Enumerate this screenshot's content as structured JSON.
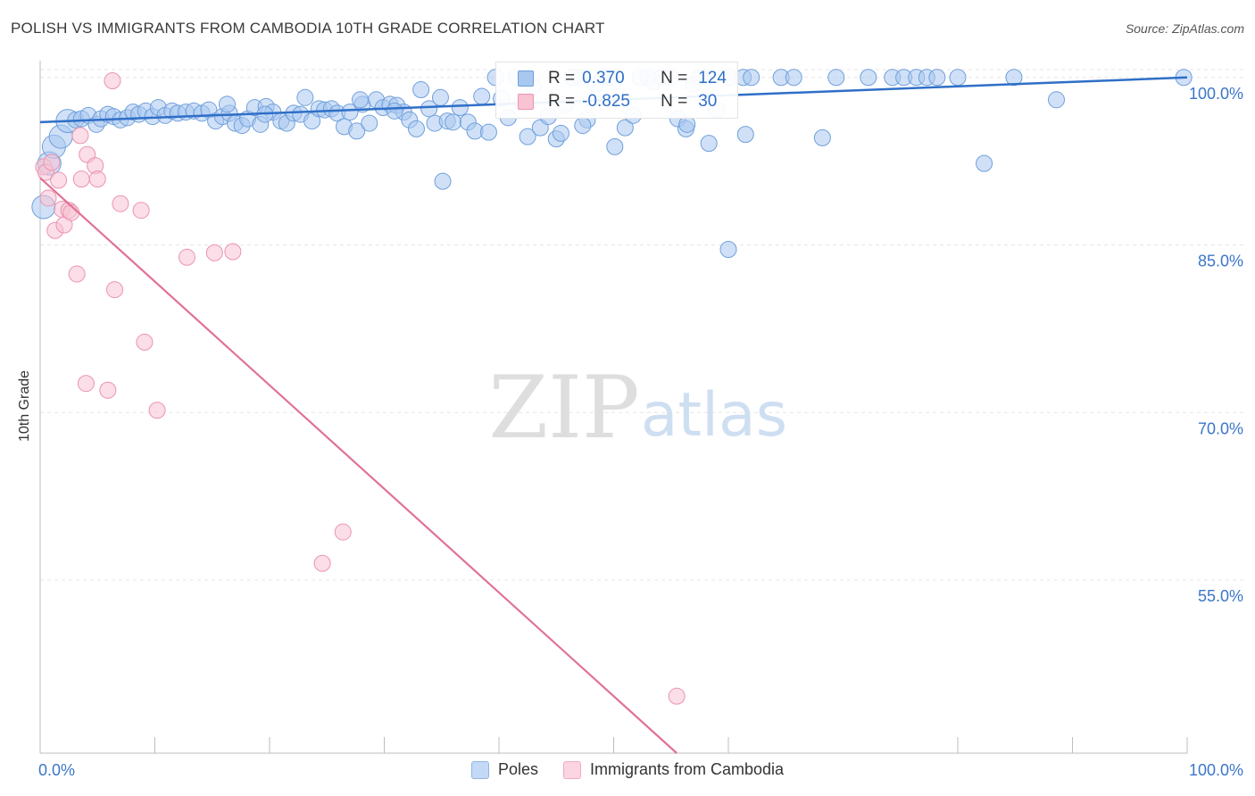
{
  "header": {
    "title": "POLISH VS IMMIGRANTS FROM CAMBODIA 10TH GRADE CORRELATION CHART",
    "source": "Source: ZipAtlas.com"
  },
  "watermark": {
    "zip": "ZIP",
    "atlas": "atlas"
  },
  "stats_legend": {
    "rows": [
      {
        "r_label": "R =",
        "r_value": "0.370",
        "n_label": "N =",
        "n_value": "124",
        "color": "#7aa9e6"
      },
      {
        "r_label": "R =",
        "r_value": "-0.825",
        "n_label": "N =",
        "n_value": "30",
        "color": "#f2a3bd"
      }
    ]
  },
  "colors": {
    "poles_fill": "#a9c8f0",
    "poles_stroke": "#6f9fdc",
    "poles_line": "#2f6fc7",
    "cambodia_fill": "#f8c3d3",
    "cambodia_stroke": "#eb93b0",
    "cambodia_line": "#e07298",
    "tick_label": "#3b76c9",
    "grid": "#e6e6e6"
  },
  "chart_data": {
    "type": "scatter",
    "title": "POLISH VS IMMIGRANTS FROM CAMBODIA 10TH GRADE CORRELATION CHART",
    "xlabel": "",
    "ylabel": "10th Grade",
    "xlim": [
      0,
      100
    ],
    "ylim": [
      39.5,
      101.5
    ],
    "x_tick_labels": [
      "0.0%",
      "100.0%"
    ],
    "y_ticks": [
      55,
      70,
      85,
      100
    ],
    "y_tick_labels": [
      "55.0%",
      "70.0%",
      "85.0%",
      "100.0%"
    ],
    "grid": true,
    "legend": "bottom",
    "series": [
      {
        "name": "Poles",
        "r": 0.37,
        "n": 124,
        "trend": [
          [
            0,
            96.0
          ],
          [
            100,
            100.0
          ]
        ],
        "points": [
          [
            0.3,
            88.4
          ],
          [
            0.8,
            92.3
          ],
          [
            1.2,
            93.8
          ],
          [
            1.8,
            94.7
          ],
          [
            2.4,
            96.1
          ],
          [
            3.1,
            96.2
          ],
          [
            3.6,
            96.3
          ],
          [
            4.2,
            96.6
          ],
          [
            4.9,
            95.8
          ],
          [
            5.3,
            96.3
          ],
          [
            5.9,
            96.7
          ],
          [
            6.4,
            96.5
          ],
          [
            7.0,
            96.2
          ],
          [
            7.6,
            96.4
          ],
          [
            8.1,
            96.9
          ],
          [
            8.6,
            96.7
          ],
          [
            9.2,
            97.0
          ],
          [
            9.8,
            96.5
          ],
          [
            10.3,
            97.3
          ],
          [
            10.9,
            96.6
          ],
          [
            11.5,
            97.0
          ],
          [
            12.0,
            96.8
          ],
          [
            12.7,
            96.9
          ],
          [
            13.4,
            97.0
          ],
          [
            14.1,
            96.8
          ],
          [
            14.7,
            97.1
          ],
          [
            15.3,
            96.1
          ],
          [
            15.9,
            96.5
          ],
          [
            16.5,
            96.8
          ],
          [
            17.0,
            95.9
          ],
          [
            17.6,
            95.7
          ],
          [
            18.1,
            96.3
          ],
          [
            18.7,
            97.3
          ],
          [
            19.2,
            95.8
          ],
          [
            19.7,
            97.4
          ],
          [
            20.3,
            96.9
          ],
          [
            21.0,
            96.1
          ],
          [
            21.5,
            95.9
          ],
          [
            22.1,
            96.8
          ],
          [
            22.7,
            96.7
          ],
          [
            23.1,
            98.2
          ],
          [
            23.7,
            96.1
          ],
          [
            24.3,
            97.2
          ],
          [
            24.8,
            97.1
          ],
          [
            25.4,
            97.2
          ],
          [
            25.9,
            96.8
          ],
          [
            26.5,
            95.6
          ],
          [
            27.0,
            96.9
          ],
          [
            27.6,
            95.2
          ],
          [
            28.1,
            97.6
          ],
          [
            28.7,
            95.9
          ],
          [
            29.3,
            98.0
          ],
          [
            29.9,
            97.3
          ],
          [
            30.5,
            97.6
          ],
          [
            31.1,
            97.5
          ],
          [
            31.7,
            96.9
          ],
          [
            32.2,
            96.2
          ],
          [
            32.8,
            95.4
          ],
          [
            33.2,
            98.9
          ],
          [
            33.9,
            97.2
          ],
          [
            34.4,
            95.9
          ],
          [
            34.9,
            98.2
          ],
          [
            35.5,
            96.1
          ],
          [
            36.0,
            96.0
          ],
          [
            36.6,
            97.3
          ],
          [
            37.3,
            96.0
          ],
          [
            37.9,
            95.2
          ],
          [
            38.5,
            98.3
          ],
          [
            39.1,
            95.1
          ],
          [
            39.7,
            100.0
          ],
          [
            40.2,
            98.1
          ],
          [
            40.8,
            96.4
          ],
          [
            41.5,
            100.0
          ],
          [
            42.0,
            97.7
          ],
          [
            42.5,
            94.7
          ],
          [
            43.0,
            99.2
          ],
          [
            43.6,
            95.5
          ],
          [
            44.3,
            96.5
          ],
          [
            45.0,
            94.5
          ],
          [
            45.8,
            97.6
          ],
          [
            46.4,
            100.0
          ],
          [
            47.0,
            100.0
          ],
          [
            47.7,
            96.2
          ],
          [
            48.4,
            99.4
          ],
          [
            49.1,
            100.0
          ],
          [
            49.6,
            100.0
          ],
          [
            50.2,
            100.0
          ],
          [
            51.0,
            95.5
          ],
          [
            51.7,
            96.6
          ],
          [
            52.3,
            100.0
          ],
          [
            53.0,
            100.0
          ],
          [
            53.5,
            99.6
          ],
          [
            54.2,
            100.0
          ],
          [
            55.0,
            100.0
          ],
          [
            55.6,
            96.3
          ],
          [
            56.3,
            95.4
          ],
          [
            57.0,
            99.4
          ],
          [
            57.5,
            100.0
          ],
          [
            58.1,
            100.0
          ],
          [
            59.0,
            97.1
          ],
          [
            60.1,
            100.0
          ],
          [
            61.3,
            100.0
          ],
          [
            62.0,
            100.0
          ],
          [
            68.2,
            94.6
          ],
          [
            60.0,
            84.6
          ],
          [
            35.1,
            90.7
          ],
          [
            56.4,
            95.8
          ],
          [
            45.4,
            95.0
          ],
          [
            61.5,
            94.9
          ],
          [
            58.3,
            94.1
          ],
          [
            50.1,
            93.8
          ],
          [
            47.3,
            95.7
          ],
          [
            64.6,
            100.0
          ],
          [
            65.7,
            100.0
          ],
          [
            69.4,
            100.0
          ],
          [
            72.2,
            100.0
          ],
          [
            74.3,
            100.0
          ],
          [
            75.3,
            100.0
          ],
          [
            76.4,
            100.0
          ],
          [
            77.3,
            100.0
          ],
          [
            78.2,
            100.0
          ],
          [
            80.0,
            100.0
          ],
          [
            82.3,
            92.3
          ],
          [
            84.9,
            100.0
          ],
          [
            88.6,
            98.0
          ],
          [
            99.7,
            100.0
          ],
          [
            16.3,
            97.6
          ],
          [
            27.9,
            98.0
          ],
          [
            19.6,
            96.7
          ],
          [
            30.9,
            97.0
          ]
        ]
      },
      {
        "name": "Immigrants from Cambodia",
        "r": -0.825,
        "n": 30,
        "trend": [
          [
            0,
            91.0
          ],
          [
            55.5,
            39.5
          ]
        ],
        "points": [
          [
            0.3,
            92.0
          ],
          [
            0.5,
            91.5
          ],
          [
            0.7,
            89.2
          ],
          [
            1.3,
            86.3
          ],
          [
            1.6,
            90.8
          ],
          [
            1.9,
            88.2
          ],
          [
            2.1,
            86.8
          ],
          [
            2.5,
            88.1
          ],
          [
            2.7,
            87.9
          ],
          [
            3.2,
            82.4
          ],
          [
            3.5,
            94.8
          ],
          [
            3.6,
            90.9
          ],
          [
            4.0,
            72.6
          ],
          [
            4.1,
            93.1
          ],
          [
            4.8,
            92.1
          ],
          [
            5.0,
            90.9
          ],
          [
            5.9,
            72.0
          ],
          [
            6.3,
            99.7
          ],
          [
            6.5,
            81.0
          ],
          [
            7.0,
            88.7
          ],
          [
            8.8,
            88.1
          ],
          [
            9.1,
            76.3
          ],
          [
            10.2,
            70.2
          ],
          [
            12.8,
            83.9
          ],
          [
            15.2,
            84.3
          ],
          [
            16.8,
            84.4
          ],
          [
            24.6,
            56.5
          ],
          [
            26.4,
            59.3
          ],
          [
            55.5,
            44.6
          ],
          [
            1.0,
            92.4
          ]
        ]
      }
    ]
  },
  "bottom_legend": [
    {
      "label": "Poles"
    },
    {
      "label": "Immigrants from Cambodia"
    }
  ]
}
